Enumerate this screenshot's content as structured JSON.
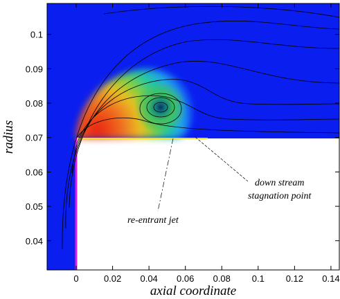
{
  "chart_data": {
    "type": "contour",
    "xlabel": "axial coordinate",
    "ylabel": "radius",
    "xlim": [
      -0.016,
      0.1446
    ],
    "ylim": [
      0.0315,
      0.109
    ],
    "xticks": [
      0,
      0.02,
      0.04,
      0.06,
      0.08,
      0.1,
      0.12,
      0.14
    ],
    "yticks": [
      0.04,
      0.05,
      0.06,
      0.07,
      0.08,
      0.09,
      0.1
    ],
    "annotations": [
      {
        "lines": [
          "down stream",
          "stagnation point"
        ]
      },
      {
        "lines": [
          "re-entrant jet"
        ]
      }
    ]
  }
}
